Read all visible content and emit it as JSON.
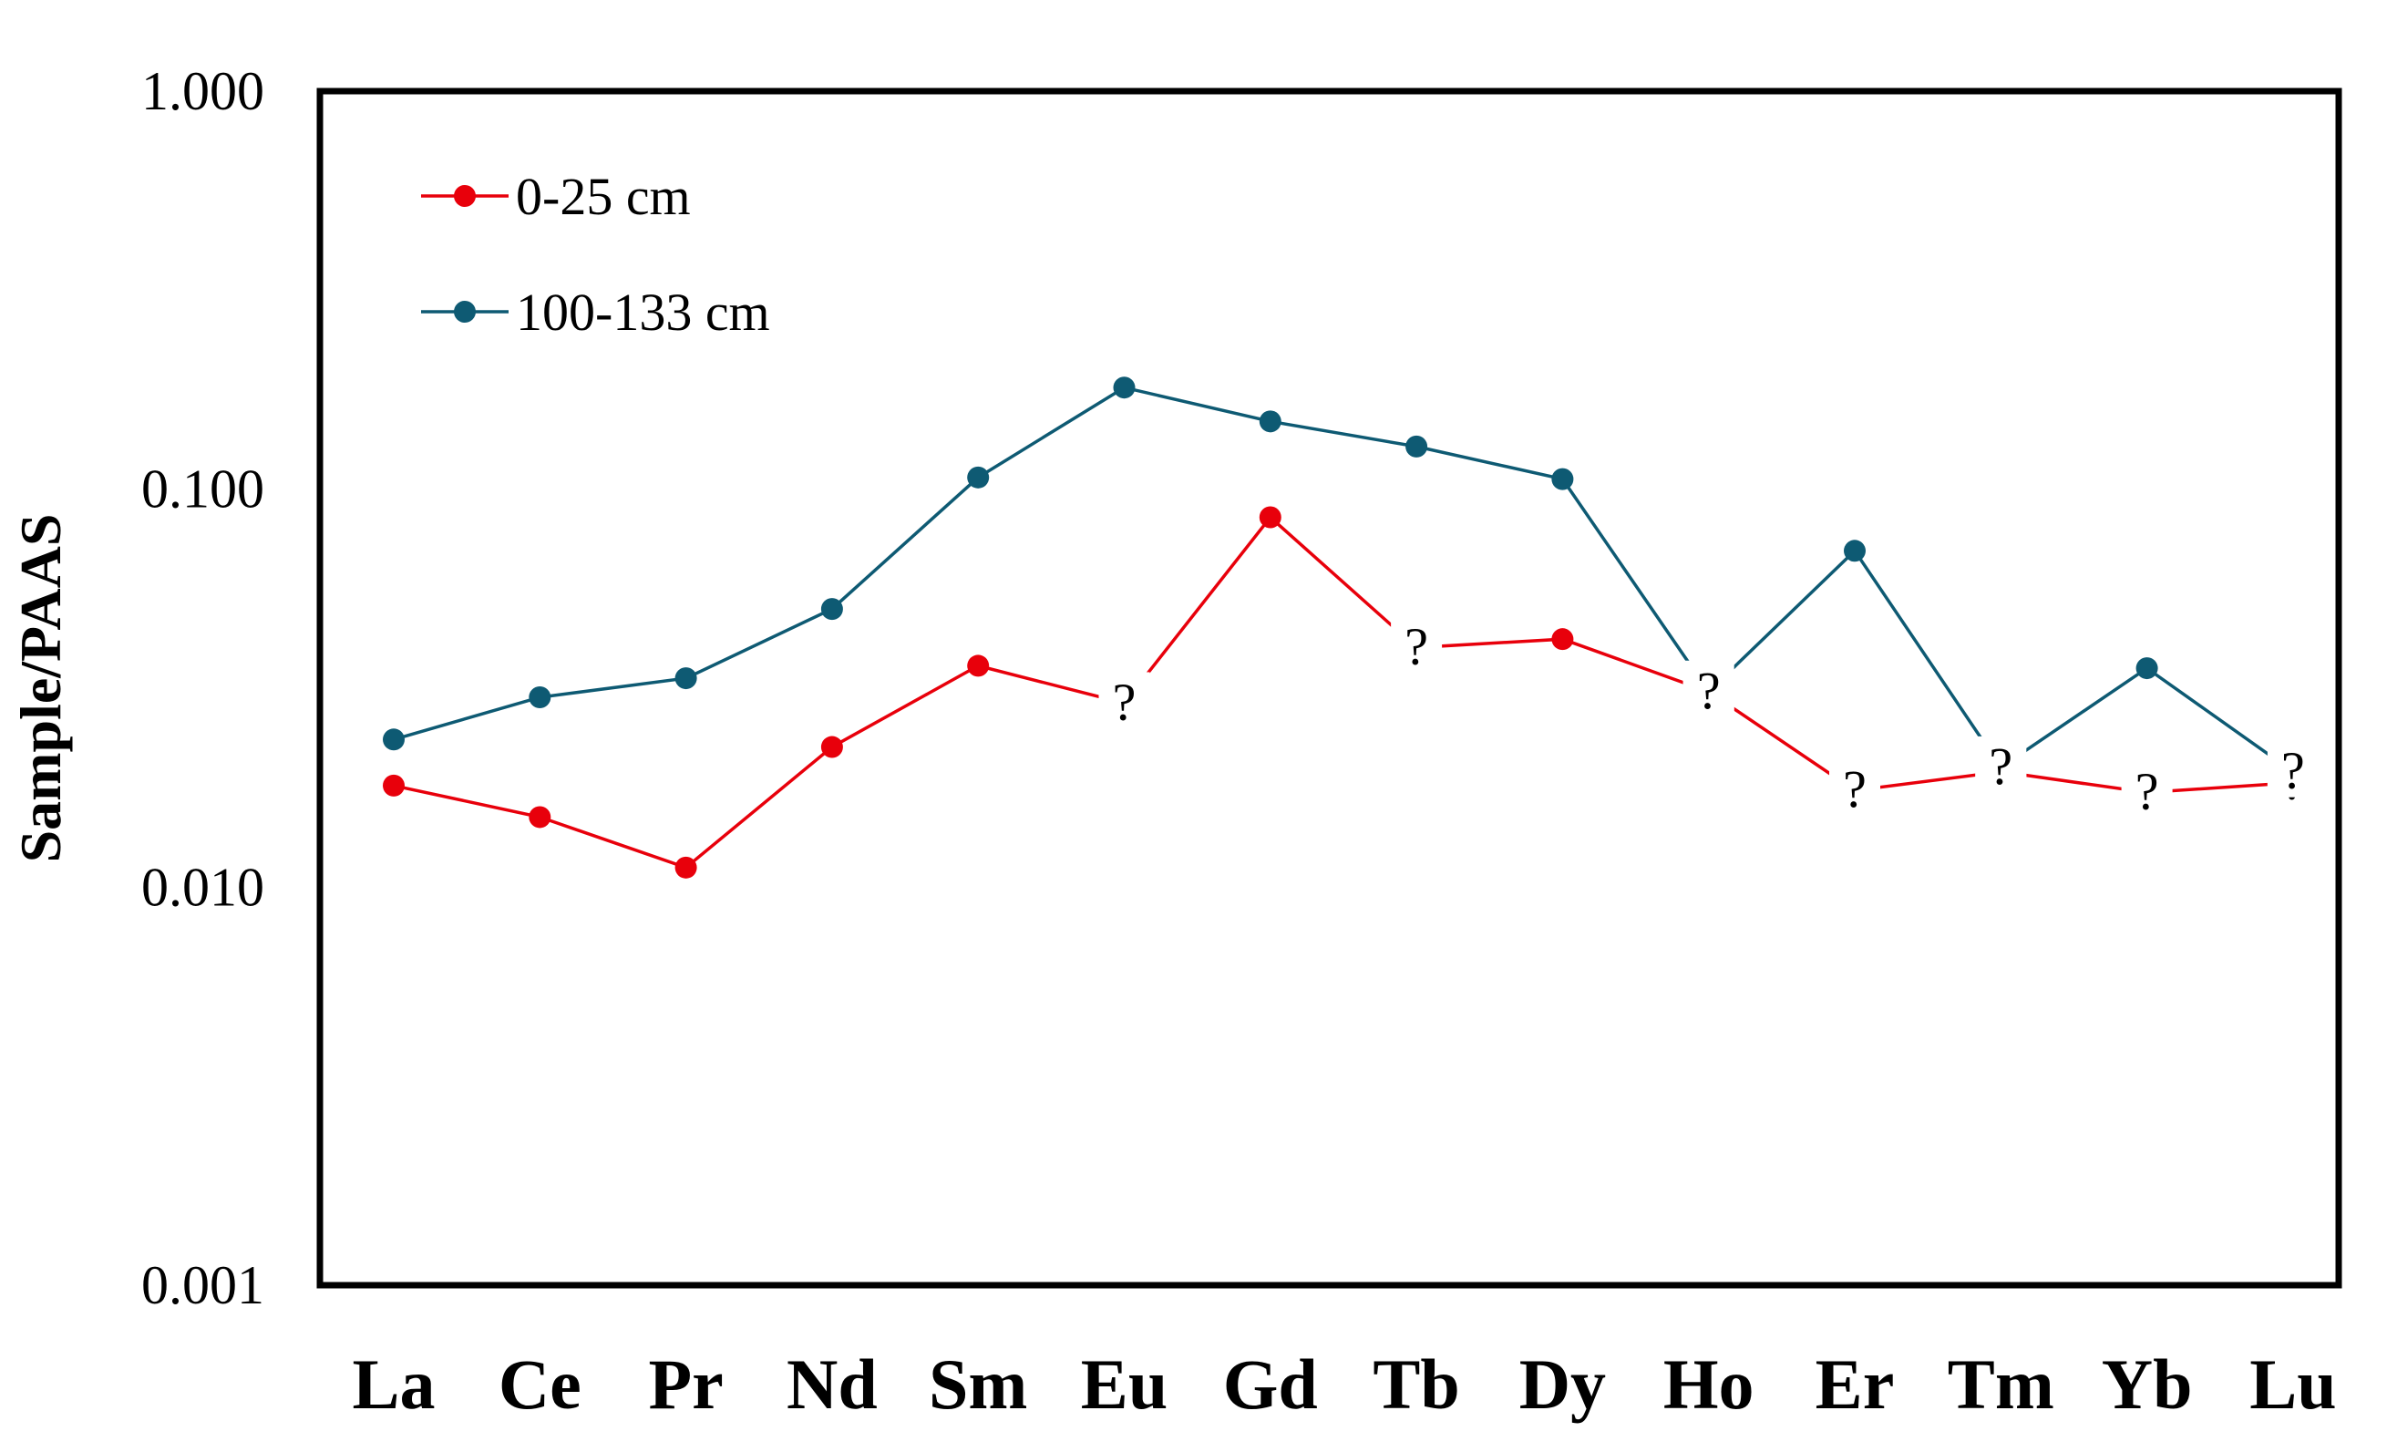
{
  "chart_data": {
    "type": "line",
    "title": "",
    "xlabel": "",
    "ylabel": "Sample/PAAS",
    "yscale": "log",
    "ylim": [
      0.001,
      1.0
    ],
    "ytick_values": [
      0.001,
      0.01,
      0.1,
      1.0
    ],
    "ytick_labels": [
      "0.001",
      "0.010",
      "0.100",
      "1.000"
    ],
    "grid": false,
    "legend_position": "top-left",
    "categories": [
      "La",
      "Ce",
      "Pr",
      "Nd",
      "Sm",
      "Eu",
      "Gd",
      "Tb",
      "Dy",
      "Ho",
      "Er",
      "Tm",
      "Yb",
      "Lu"
    ],
    "series": [
      {
        "name": "0-25 cm",
        "color": "#e8000b",
        "values": [
          0.018,
          0.015,
          0.0112,
          0.0225,
          0.036,
          null,
          0.085,
          null,
          0.042,
          null,
          null,
          null,
          null,
          null
        ],
        "uncertain": [
          {
            "category": "Eu",
            "value": 0.029,
            "label": "?"
          },
          {
            "category": "Tb",
            "value": 0.04,
            "label": "?"
          },
          {
            "category": "Ho",
            "value": 0.031,
            "label": "?"
          },
          {
            "category": "Er",
            "value": 0.0175,
            "label": "?"
          },
          {
            "category": "Tm",
            "value": 0.0195,
            "label": "?"
          },
          {
            "category": "Yb",
            "value": 0.0173,
            "label": "?"
          },
          {
            "category": "Lu",
            "value": 0.0183,
            "label": "?"
          }
        ]
      },
      {
        "name": "100-133 cm",
        "color": "#0e5a73",
        "values": [
          0.0235,
          0.03,
          0.0335,
          0.05,
          0.107,
          0.18,
          0.148,
          0.128,
          0.106,
          null,
          0.07,
          null,
          0.0355,
          null
        ],
        "uncertain": [
          {
            "category": "Ho",
            "value": 0.031,
            "label": "?"
          },
          {
            "category": "Tm",
            "value": 0.02,
            "label": "?"
          },
          {
            "category": "Lu",
            "value": 0.0195,
            "label": "?"
          }
        ]
      }
    ]
  },
  "colors": {
    "axis": "#000000",
    "background": "#ffffff"
  }
}
